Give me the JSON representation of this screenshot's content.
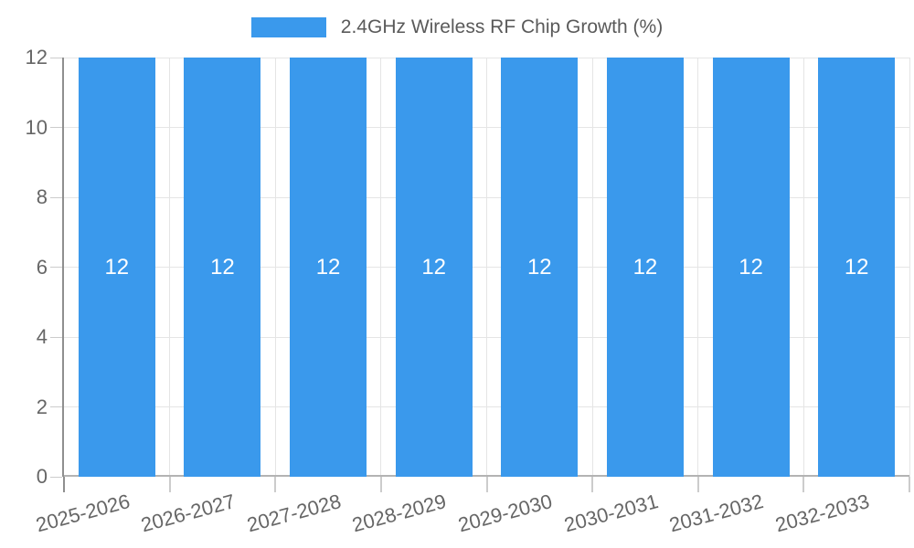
{
  "chart_data": {
    "type": "bar",
    "title": "2.4GHz Wireless RF Chip Growth (%)",
    "legend": {
      "label": "2.4GHz Wireless RF Chip Growth (%)",
      "position": "top"
    },
    "categories": [
      "2025-2026",
      "2026-2027",
      "2027-2028",
      "2028-2029",
      "2029-2030",
      "2030-2031",
      "2031-2032",
      "2032-2033"
    ],
    "series": [
      {
        "name": "2.4GHz Wireless RF Chip Growth (%)",
        "values": [
          12,
          12,
          12,
          12,
          12,
          12,
          12,
          12
        ]
      }
    ],
    "bar_value_labels": [
      "12",
      "12",
      "12",
      "12",
      "12",
      "12",
      "12",
      "12"
    ],
    "xlabel": "",
    "ylabel": "",
    "ylim": [
      0,
      12
    ],
    "yticks": [
      0,
      2,
      4,
      6,
      8,
      10,
      12
    ],
    "grid": true,
    "x_tick_rotation_deg": -15,
    "colors": {
      "bar": "#3A99EC",
      "bar_label": "#FFFFFF",
      "grid": "#E5E5E5",
      "tick_mark": "#CCCCCC",
      "y_axis_border": "#8F8F8F",
      "x_axis_border": "#B3B3B3",
      "tick_text": "#666666",
      "legend_text": "#5A5A5A",
      "background": "#FFFFFF"
    }
  }
}
